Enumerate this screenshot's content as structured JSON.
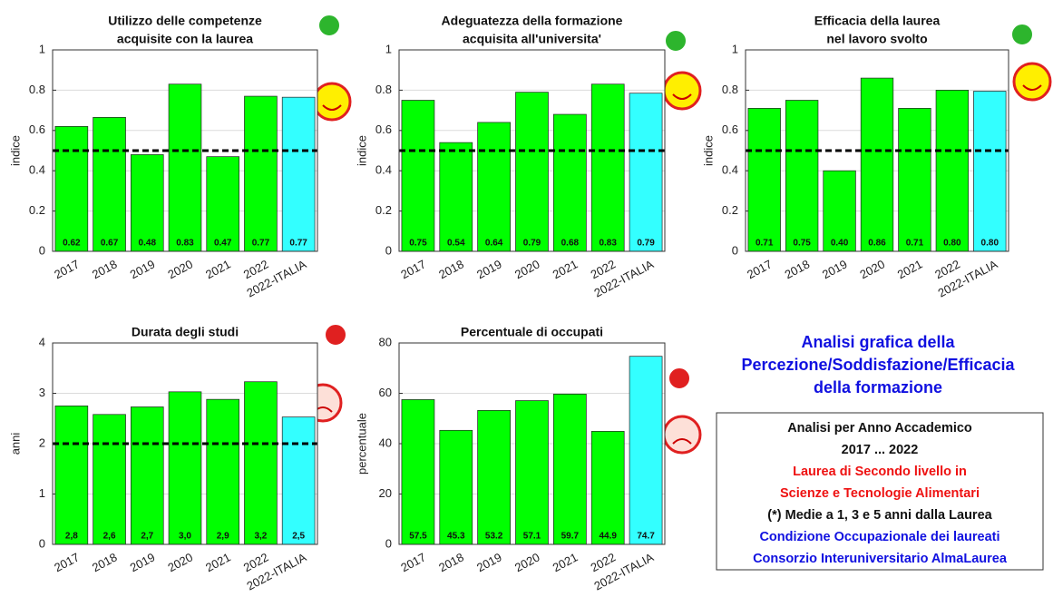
{
  "chart_data": [
    {
      "type": "bar",
      "title": [
        "Utilizzo delle competenze",
        "acquisite con la laurea"
      ],
      "ylabel": "indice",
      "categories": [
        "2017",
        "2018",
        "2019",
        "2020",
        "2021",
        "2022",
        "2022-ITALIA"
      ],
      "values": [
        0.62,
        0.665,
        0.48,
        0.83,
        0.47,
        0.77,
        0.765
      ],
      "value_labels": [
        "0.62",
        "0.67",
        "0.48",
        "0.83",
        "0.47",
        "0.77",
        "0.77"
      ],
      "colors": [
        "#00ff00",
        "#00ff00",
        "#00ff00",
        "#00ff00",
        "#00ff00",
        "#00ff00",
        "#33ffff"
      ],
      "threshold": 0.5,
      "ylim": [
        0,
        1
      ],
      "yticks": [
        0,
        0.2,
        0.4,
        0.6,
        0.8,
        1
      ],
      "grid": true
    },
    {
      "type": "bar",
      "title": [
        "Adeguatezza della formazione",
        "acquisita all'universita'"
      ],
      "ylabel": "indice",
      "categories": [
        "2017",
        "2018",
        "2019",
        "2020",
        "2021",
        "2022",
        "2022-ITALIA"
      ],
      "values": [
        0.75,
        0.54,
        0.64,
        0.79,
        0.68,
        0.83,
        0.785
      ],
      "value_labels": [
        "0.75",
        "0.54",
        "0.64",
        "0.79",
        "0.68",
        "0.83",
        "0.79"
      ],
      "colors": [
        "#00ff00",
        "#00ff00",
        "#00ff00",
        "#00ff00",
        "#00ff00",
        "#00ff00",
        "#33ffff"
      ],
      "threshold": 0.5,
      "ylim": [
        0,
        1
      ],
      "yticks": [
        0,
        0.2,
        0.4,
        0.6,
        0.8,
        1
      ],
      "grid": true
    },
    {
      "type": "bar",
      "title": [
        "Efficacia della laurea",
        "nel lavoro svolto"
      ],
      "ylabel": "indice",
      "categories": [
        "2017",
        "2018",
        "2019",
        "2020",
        "2021",
        "2022",
        "2022-ITALIA"
      ],
      "values": [
        0.71,
        0.75,
        0.4,
        0.86,
        0.71,
        0.8,
        0.795
      ],
      "value_labels": [
        "0.71",
        "0.75",
        "0.40",
        "0.86",
        "0.71",
        "0.80",
        "0.80"
      ],
      "colors": [
        "#00ff00",
        "#00ff00",
        "#00ff00",
        "#00ff00",
        "#00ff00",
        "#00ff00",
        "#33ffff"
      ],
      "threshold": 0.5,
      "ylim": [
        0,
        1
      ],
      "yticks": [
        0,
        0.2,
        0.4,
        0.6,
        0.8,
        1
      ],
      "grid": true
    },
    {
      "type": "bar",
      "title": [
        "Durata degli studi"
      ],
      "ylabel": "anni",
      "categories": [
        "2017",
        "2018",
        "2019",
        "2020",
        "2021",
        "2022",
        "2022-ITALIA"
      ],
      "values": [
        2.75,
        2.58,
        2.73,
        3.03,
        2.88,
        3.23,
        2.53
      ],
      "value_labels": [
        "2,8",
        "2,6",
        "2,7",
        "3,0",
        "2,9",
        "3,2",
        "2,5"
      ],
      "colors": [
        "#00ff00",
        "#00ff00",
        "#00ff00",
        "#00ff00",
        "#00ff00",
        "#00ff00",
        "#33ffff"
      ],
      "threshold": 2,
      "ylim": [
        0,
        4
      ],
      "yticks": [
        0,
        1,
        2,
        3,
        4
      ],
      "grid": true
    },
    {
      "type": "bar",
      "title": [
        "Percentuale di occupati"
      ],
      "ylabel": "percentuale",
      "categories": [
        "2017",
        "2018",
        "2019",
        "2020",
        "2021",
        "2022",
        "2022-ITALIA"
      ],
      "values": [
        57.5,
        45.3,
        53.2,
        57.1,
        59.7,
        44.9,
        74.7
      ],
      "value_labels": [
        "57.5",
        "45.3",
        "53.2",
        "57.1",
        "59.7",
        "44.9",
        "74.7"
      ],
      "colors": [
        "#00ff00",
        "#00ff00",
        "#00ff00",
        "#00ff00",
        "#00ff00",
        "#00ff00",
        "#33ffff"
      ],
      "ylim": [
        0,
        80
      ],
      "yticks": [
        0,
        20,
        40,
        60,
        80
      ],
      "grid": true
    }
  ],
  "heading": {
    "color": "#1010e0",
    "lines": [
      "Analisi grafica della",
      "Percezione/Soddisfazione/Efficacia",
      "della formazione"
    ]
  },
  "info_box": {
    "lines": [
      {
        "text": "Analisi per Anno Accademico",
        "color": "#111111"
      },
      {
        "text": "2017 ... 2022",
        "color": "#111111"
      },
      {
        "text": "Laurea di Secondo livello in",
        "color": "#ee1111"
      },
      {
        "text": "Scienze e Tecnologie Alimentari",
        "color": "#ee1111"
      },
      {
        "text": "(*) Medie a 1, 3 e 5 anni dalla Laurea",
        "color": "#111111"
      },
      {
        "text": "Condizione Occupazionale dei laureati",
        "color": "#1010e0"
      },
      {
        "text": "Consorzio Interuniversitario AlmaLaurea",
        "color": "#1010e0"
      }
    ]
  }
}
